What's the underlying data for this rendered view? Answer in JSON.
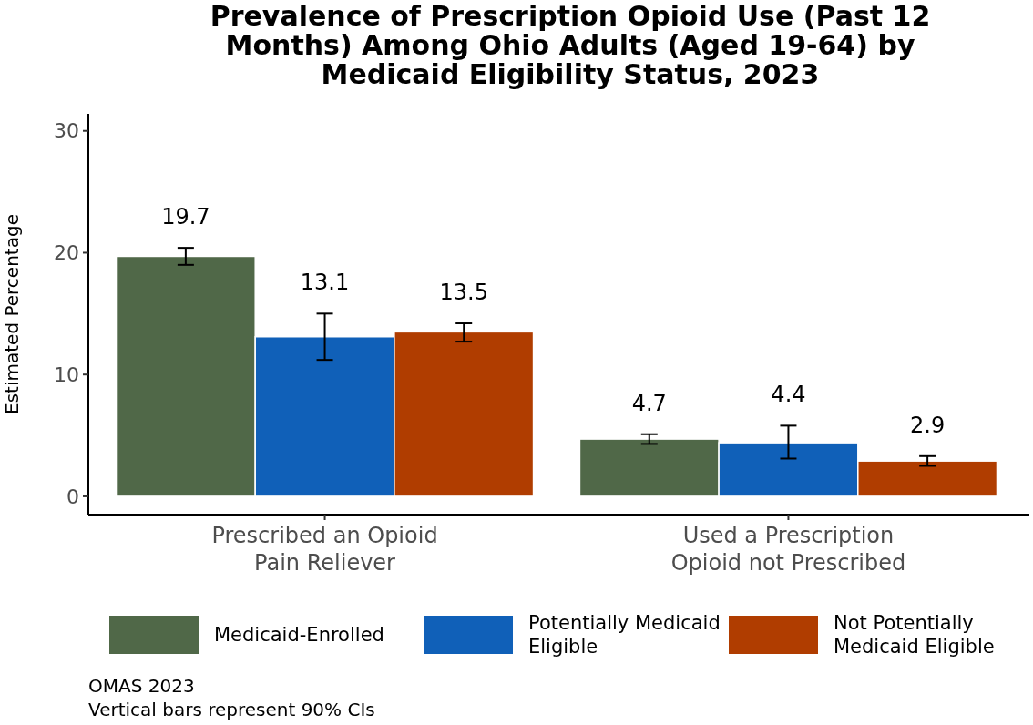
{
  "chart_data": {
    "type": "bar",
    "title": "Prevalence of Prescription Opioid Use (Past 12 Months) Among Ohio Adults (Aged 19-64) by Medicaid Eligibility Status, 2023",
    "ylabel": "Estimated Percentage",
    "categories": [
      "Prescribed an Opioid Pain Reliever",
      "Used a Prescription Opioid not Prescribed"
    ],
    "series": [
      {
        "name": "Medicaid-Enrolled",
        "color": "#506848",
        "values": [
          19.7,
          4.7
        ],
        "errors": [
          [
            19.0,
            20.4
          ],
          [
            4.3,
            5.1
          ]
        ]
      },
      {
        "name": "Potentially Medicaid Eligible",
        "color": "#1060b8",
        "values": [
          13.1,
          4.4
        ],
        "errors": [
          [
            11.2,
            15.0
          ],
          [
            3.1,
            5.8
          ]
        ]
      },
      {
        "name": "Not Potentially Medicaid Eligible",
        "color": "#b03d00",
        "values": [
          13.5,
          2.9
        ],
        "errors": [
          [
            12.7,
            14.2
          ],
          [
            2.5,
            3.3
          ]
        ]
      }
    ],
    "ylim": [
      -1.5,
      31.4
    ],
    "yticks": [
      0,
      10,
      20,
      30
    ],
    "grid": false,
    "legend": "bottom",
    "data_labels": true,
    "annotations": [
      "OMAS 2023",
      "Vertical bars represent 90% CIs"
    ]
  }
}
